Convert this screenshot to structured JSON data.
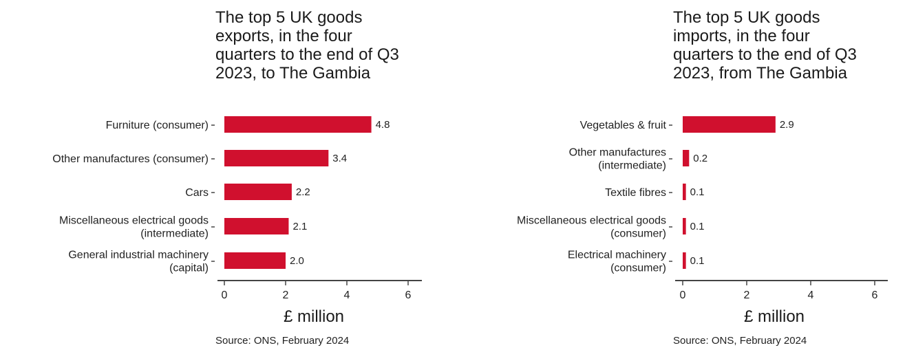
{
  "chart_data": [
    {
      "type": "bar",
      "orientation": "horizontal",
      "title": "The top 5 UK goods\nexports, in the four\nquarters to the end of Q3\n2023, to The Gambia",
      "categories": [
        [
          "Furniture (consumer)"
        ],
        [
          "Other manufactures (consumer)"
        ],
        [
          "Cars"
        ],
        [
          "Miscellaneous electrical goods",
          "(intermediate)"
        ],
        [
          "General industrial machinery",
          "(capital)"
        ]
      ],
      "values": [
        4.8,
        3.4,
        2.2,
        2.1,
        2.0
      ],
      "value_labels": [
        "4.8",
        "3.4",
        "2.2",
        "2.1",
        "2.0"
      ],
      "xlabel": "£ million",
      "xlim": [
        0,
        6
      ],
      "xticks": [
        "0",
        "2",
        "4",
        "6"
      ],
      "source": "Source: ONS, February 2024",
      "bar_color": "#d0102e"
    },
    {
      "type": "bar",
      "orientation": "horizontal",
      "title": "The top 5 UK goods\nimports, in the four\nquarters to the end of Q3\n2023, from The Gambia",
      "categories": [
        [
          "Vegetables & fruit"
        ],
        [
          "Other manufactures",
          "(intermediate)"
        ],
        [
          "Textile fibres"
        ],
        [
          "Miscellaneous electrical goods",
          "(consumer)"
        ],
        [
          "Electrical machinery",
          "(consumer)"
        ]
      ],
      "values": [
        2.9,
        0.2,
        0.1,
        0.1,
        0.1
      ],
      "value_labels": [
        "2.9",
        "0.2",
        "0.1",
        "0.1",
        "0.1"
      ],
      "xlabel": "£ million",
      "xlim": [
        0,
        6
      ],
      "xticks": [
        "0",
        "2",
        "4",
        "6"
      ],
      "source": "Source: ONS, February 2024",
      "bar_color": "#d0102e"
    }
  ]
}
